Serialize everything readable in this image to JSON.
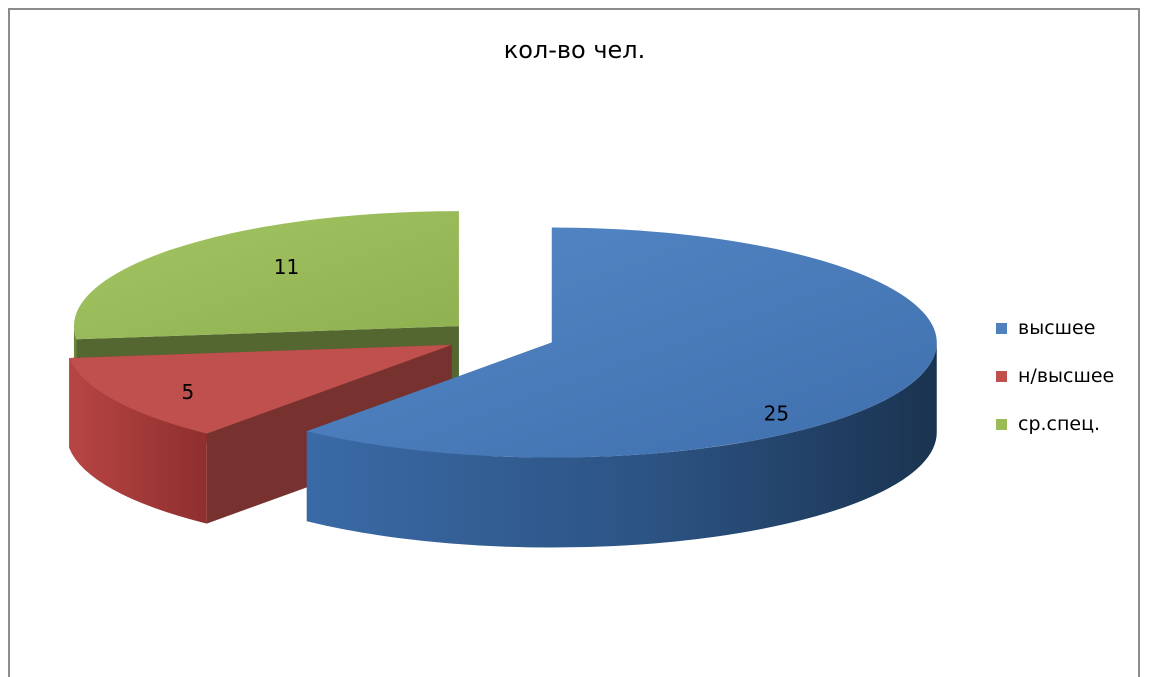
{
  "chart_data": {
    "type": "pie",
    "title": "кол-во чел.",
    "categories": [
      "высшее",
      "н/высшее",
      "ср.спец."
    ],
    "values": [
      25,
      5,
      11
    ],
    "colors": [
      "#4f81bd",
      "#c0504d",
      "#9bbb59"
    ],
    "data_labels": [
      "25",
      "5",
      "11"
    ],
    "exploded": true,
    "three_d": true,
    "legend": "right"
  }
}
